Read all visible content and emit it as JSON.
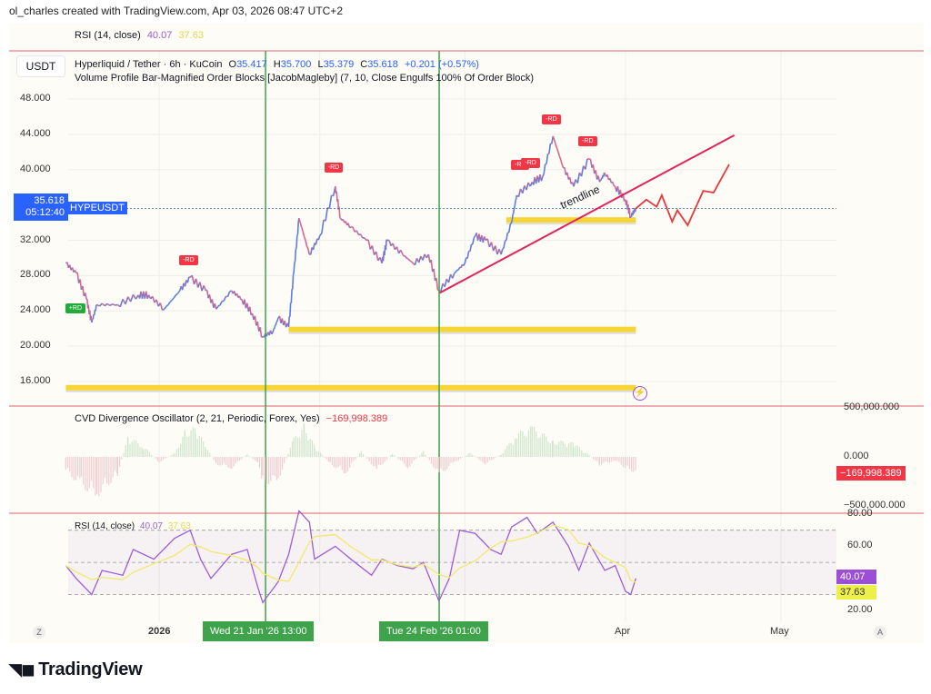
{
  "credit": "ol_charles created with TradingView.com, Apr 03, 2026 08:47 UTC+2",
  "top_legend": {
    "label": "RSI (14, close)",
    "value1": "40.07",
    "value2": "37.63"
  },
  "symbol_box": "USDT",
  "main_legend": {
    "title": "Hyperliquid / Tether · 6h · KuCoin",
    "o_label": "O",
    "o": "35.417",
    "h_label": "H",
    "h": "35.700",
    "l_label": "L",
    "l": "35.379",
    "c_label": "C",
    "c": "35.618",
    "change": "+0.201 (+0.57%)",
    "indicator": "Volume Profile Bar-Magnified Order Blocks [JacobMagleby] (7, 10, Close Engulfs 100% Of Order Block)"
  },
  "price_tag": {
    "price": "35.618",
    "countdown": "05:12:40",
    "symbol": "HYPEUSDT"
  },
  "cvd_legend": {
    "label": "CVD Divergence Oscillator (2, 21, Periodic, Forex, Yes)",
    "value": "−169,998.389"
  },
  "rsi_legend": {
    "label": "RSI (14, close)",
    "value1": "40.07",
    "value2": "37.63"
  },
  "time_labels": {
    "crosshair1": "Wed 21 Jan '26   13:00",
    "crosshair2": "Tue 24 Feb '26   01:00"
  },
  "axis_buttons": {
    "left": "Z",
    "right": "A"
  },
  "drawing_text": "trendline",
  "rd_labels": {
    "minus": "-RD",
    "plus": "+RD"
  },
  "logo": "TradingView",
  "colors": {
    "up": "#5b7fe0",
    "down": "#d9668f",
    "rsi": "#9c5ed6",
    "rsi_ma": "#f2e96b",
    "trendline": "#e0245e",
    "order_block": "#f7d534",
    "crosshair": "#3ea34a",
    "divider": "#e57f89",
    "price_tag": "#2962ff",
    "cvd_pos": "#cfe6cf",
    "cvd_neg": "#f0cdd2"
  },
  "chart_data": [
    {
      "type": "line",
      "title": "Hyperliquid / Tether · 6h · KuCoin",
      "y_ticks": [
        "48.000",
        "44.000",
        "40.000",
        "32.000",
        "28.000",
        "24.000",
        "20.000",
        "16.000"
      ],
      "ylim": [
        15,
        49
      ],
      "x_ticks": [
        "2026",
        "Apr",
        "May"
      ],
      "grid": true,
      "series": [
        {
          "values": [
            [
              "2025-12-14",
              29.4
            ],
            [
              "2025-12-16",
              28.3
            ],
            [
              "2025-12-18",
              25.3
            ],
            [
              "2025-12-19",
              22.7
            ],
            [
              "2025-12-20",
              24.7
            ],
            [
              "2025-12-24",
              24.7
            ],
            [
              "2025-12-28",
              25.8
            ],
            [
              "2025-12-30",
              25.8
            ],
            [
              "2026-01-02",
              24.2
            ],
            [
              "2026-01-05",
              26.3
            ],
            [
              "2026-01-07",
              27.8
            ],
            [
              "2026-01-10",
              26.3
            ],
            [
              "2026-01-12",
              24.2
            ],
            [
              "2026-01-15",
              26.3
            ],
            [
              "2026-01-17",
              25.3
            ],
            [
              "2026-01-19",
              23.7
            ],
            [
              "2026-01-21",
              21.1
            ],
            [
              "2026-01-23",
              21.7
            ],
            [
              "2026-01-24",
              23.2
            ],
            [
              "2026-01-26",
              22.2
            ],
            [
              "2026-01-27",
              28.4
            ],
            [
              "2026-01-28",
              34.5
            ],
            [
              "2026-01-30",
              30.4
            ],
            [
              "2026-02-01",
              32.5
            ],
            [
              "2026-02-04",
              38.1
            ],
            [
              "2026-02-05",
              34.5
            ],
            [
              "2026-02-07",
              33.5
            ],
            [
              "2026-02-10",
              32.0
            ],
            [
              "2026-02-13",
              29.4
            ],
            [
              "2026-02-14",
              32.0
            ],
            [
              "2026-02-17",
              30.4
            ],
            [
              "2026-02-19",
              29.4
            ],
            [
              "2026-02-22",
              30.4
            ],
            [
              "2026-02-24",
              26.3
            ],
            [
              "2026-02-27",
              28.3
            ],
            [
              "2026-03-01",
              29.4
            ],
            [
              "2026-03-03",
              32.5
            ],
            [
              "2026-03-05",
              32.0
            ],
            [
              "2026-03-08",
              30.4
            ],
            [
              "2026-03-10",
              34.0
            ],
            [
              "2026-03-11",
              37.1
            ],
            [
              "2026-03-14",
              38.6
            ],
            [
              "2026-03-16",
              39.2
            ],
            [
              "2026-03-18",
              43.8
            ],
            [
              "2026-03-20",
              40.2
            ],
            [
              "2026-03-22",
              38.1
            ],
            [
              "2026-03-25",
              41.2
            ],
            [
              "2026-03-27",
              38.6
            ],
            [
              "2026-03-28",
              39.6
            ],
            [
              "2026-03-30",
              38.1
            ],
            [
              "2026-04-01",
              36.6
            ],
            [
              "2026-04-02",
              34.7
            ],
            [
              "2026-04-03",
              35.618
            ]
          ]
        }
      ],
      "order_blocks": [
        {
          "price": 34.3,
          "from": "2026-03-09",
          "to": "2026-04-03"
        },
        {
          "price": 21.9,
          "from": "2026-01-26",
          "to": "2026-04-03"
        },
        {
          "price": 15.3,
          "from": "2025-12-14",
          "to": "2026-04-03"
        }
      ],
      "trendline": {
        "from": [
          "2026-02-24",
          26.0
        ],
        "to": [
          "2026-04-22",
          43.9
        ],
        "label": "trendline"
      },
      "projection": [
        [
          "2026-04-03",
          35.6
        ],
        [
          "2026-04-05",
          36.6
        ],
        [
          "2026-04-07",
          35.8
        ],
        [
          "2026-04-08",
          37.1
        ],
        [
          "2026-04-10",
          34.1
        ],
        [
          "2026-04-11",
          35.4
        ],
        [
          "2026-04-13",
          33.7
        ],
        [
          "2026-04-16",
          37.6
        ],
        [
          "2026-04-18",
          37.4
        ],
        [
          "2026-04-21",
          40.6
        ]
      ],
      "divergences": [
        {
          "label": "+RD",
          "date": "2025-12-16",
          "price": 26.3
        },
        {
          "label": "-RD",
          "date": "2026-01-07",
          "price": 28.0
        },
        {
          "label": "-RD",
          "date": "2026-02-04",
          "price": 38.5
        },
        {
          "label": "-RD",
          "date": "2026-03-12",
          "price": 38.8
        },
        {
          "label": "-RD",
          "date": "2026-03-14",
          "price": 39.0
        },
        {
          "label": "-RD",
          "date": "2026-03-18",
          "price": 44.0
        },
        {
          "label": "-RD",
          "date": "2026-03-25",
          "price": 41.5
        }
      ]
    },
    {
      "type": "bar",
      "title": "CVD Divergence Oscillator (2, 21, Periodic, Forex, Yes)",
      "y_ticks": [
        "500,000.000",
        "0.000",
        "−500,000.000"
      ],
      "ylim": [
        -500000,
        500000
      ],
      "last_value": -169998.389,
      "values": [
        [
          "2025-12-14",
          -150000
        ],
        [
          "2025-12-17",
          -320000
        ],
        [
          "2025-12-20",
          -420000
        ],
        [
          "2025-12-24",
          -200000
        ],
        [
          "2025-12-26",
          220000
        ],
        [
          "2025-12-29",
          120000
        ],
        [
          "2026-01-01",
          -60000
        ],
        [
          "2026-01-04",
          40000
        ],
        [
          "2026-01-06",
          280000
        ],
        [
          "2026-01-08",
          310000
        ],
        [
          "2026-01-10",
          120000
        ],
        [
          "2026-01-12",
          -80000
        ],
        [
          "2026-01-15",
          -120000
        ],
        [
          "2026-01-18",
          30000
        ],
        [
          "2026-01-20",
          -60000
        ],
        [
          "2026-01-21",
          -300000
        ],
        [
          "2026-01-24",
          -250000
        ],
        [
          "2026-01-27",
          200000
        ],
        [
          "2026-01-29",
          350000
        ],
        [
          "2026-01-31",
          120000
        ],
        [
          "2026-02-03",
          -80000
        ],
        [
          "2026-02-06",
          -180000
        ],
        [
          "2026-02-09",
          60000
        ],
        [
          "2026-02-12",
          -150000
        ],
        [
          "2026-02-15",
          40000
        ],
        [
          "2026-02-18",
          -120000
        ],
        [
          "2026-02-21",
          60000
        ],
        [
          "2026-02-24",
          -200000
        ],
        [
          "2026-02-27",
          -60000
        ],
        [
          "2026-03-02",
          40000
        ],
        [
          "2026-03-05",
          -80000
        ],
        [
          "2026-03-08",
          30000
        ],
        [
          "2026-03-11",
          250000
        ],
        [
          "2026-03-14",
          320000
        ],
        [
          "2026-03-18",
          180000
        ],
        [
          "2026-03-22",
          150000
        ],
        [
          "2026-03-25",
          20000
        ],
        [
          "2026-03-27",
          -90000
        ],
        [
          "2026-03-30",
          -40000
        ],
        [
          "2026-04-01",
          -120000
        ],
        [
          "2026-04-03",
          -169998
        ]
      ]
    },
    {
      "type": "line",
      "title": "RSI (14, close)",
      "y_ticks": [
        "80.00",
        "60.00",
        "20.00"
      ],
      "ylim": [
        15,
        80
      ],
      "bands": [
        70,
        50,
        30
      ],
      "last_values": {
        "rsi": 40.07,
        "ma": 37.63
      },
      "series": [
        {
          "values": [
            [
              "2025-12-14",
              48
            ],
            [
              "2025-12-16",
              40
            ],
            [
              "2025-12-19",
              30
            ],
            [
              "2025-12-21",
              45
            ],
            [
              "2025-12-25",
              42
            ],
            [
              "2025-12-27",
              58
            ],
            [
              "2025-12-31",
              52
            ],
            [
              "2026-01-04",
              65
            ],
            [
              "2026-01-07",
              70
            ],
            [
              "2026-01-09",
              52
            ],
            [
              "2026-01-11",
              40
            ],
            [
              "2026-01-15",
              55
            ],
            [
              "2026-01-18",
              58
            ],
            [
              "2026-01-20",
              35
            ],
            [
              "2026-01-21",
              25
            ],
            [
              "2026-01-24",
              38
            ],
            [
              "2026-01-26",
              55
            ],
            [
              "2026-01-28",
              82
            ],
            [
              "2026-01-30",
              75
            ],
            [
              "2026-01-31",
              52
            ],
            [
              "2026-02-04",
              60
            ],
            [
              "2026-02-07",
              52
            ],
            [
              "2026-02-11",
              42
            ],
            [
              "2026-02-13",
              52
            ],
            [
              "2026-02-16",
              48
            ],
            [
              "2026-02-19",
              46
            ],
            [
              "2026-02-21",
              50
            ],
            [
              "2026-02-24",
              26
            ],
            [
              "2026-02-26",
              40
            ],
            [
              "2026-02-28",
              70
            ],
            [
              "2026-03-03",
              68
            ],
            [
              "2026-03-06",
              58
            ],
            [
              "2026-03-08",
              55
            ],
            [
              "2026-03-10",
              72
            ],
            [
              "2026-03-13",
              78
            ],
            [
              "2026-03-15",
              68
            ],
            [
              "2026-03-18",
              75
            ],
            [
              "2026-03-21",
              60
            ],
            [
              "2026-03-23",
              45
            ],
            [
              "2026-03-25",
              62
            ],
            [
              "2026-03-28",
              45
            ],
            [
              "2026-03-30",
              48
            ],
            [
              "2026-04-01",
              32
            ],
            [
              "2026-04-02",
              30
            ],
            [
              "2026-04-03",
              40.07
            ]
          ]
        }
      ]
    }
  ]
}
